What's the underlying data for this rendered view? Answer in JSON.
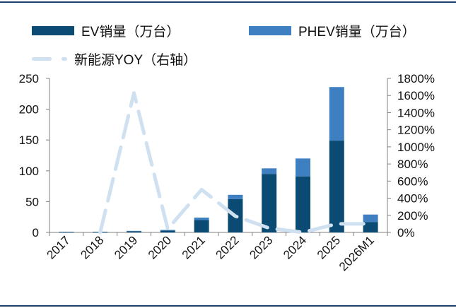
{
  "chart_data": {
    "type": "bar",
    "stacked": true,
    "categories": [
      "2017",
      "2018",
      "2019",
      "2020",
      "2021",
      "2022",
      "2023",
      "2024",
      "2025",
      "2026M1"
    ],
    "series": [
      {
        "name": "EV销量（万台）",
        "values": [
          1,
          1,
          2,
          3,
          20,
          54,
          95,
          91,
          149,
          17
        ],
        "color": "#0b4a73",
        "axis": "left"
      },
      {
        "name": "PHEV销量（万台）",
        "values": [
          0,
          0,
          0.5,
          1,
          4,
          7,
          9,
          29,
          87,
          12
        ],
        "color": "#3e7fc1",
        "axis": "left"
      },
      {
        "name": "新能源YOY（右轴）",
        "type": "line",
        "style": "dashed",
        "values": [
          null,
          0,
          1630,
          40,
          500,
          190,
          50,
          0,
          100,
          100
        ],
        "unit": "%",
        "color": "#cfe0f1",
        "axis": "right"
      }
    ],
    "y_left": {
      "min": 0,
      "max": 250,
      "ticks": [
        0,
        50,
        100,
        150,
        200,
        250
      ]
    },
    "y_right": {
      "min": 0,
      "max": 1800,
      "ticks": [
        "0%",
        "200%",
        "400%",
        "600%",
        "800%",
        "1000%",
        "1200%",
        "1400%",
        "1600%",
        "1800%"
      ]
    },
    "legend_position": "top"
  }
}
